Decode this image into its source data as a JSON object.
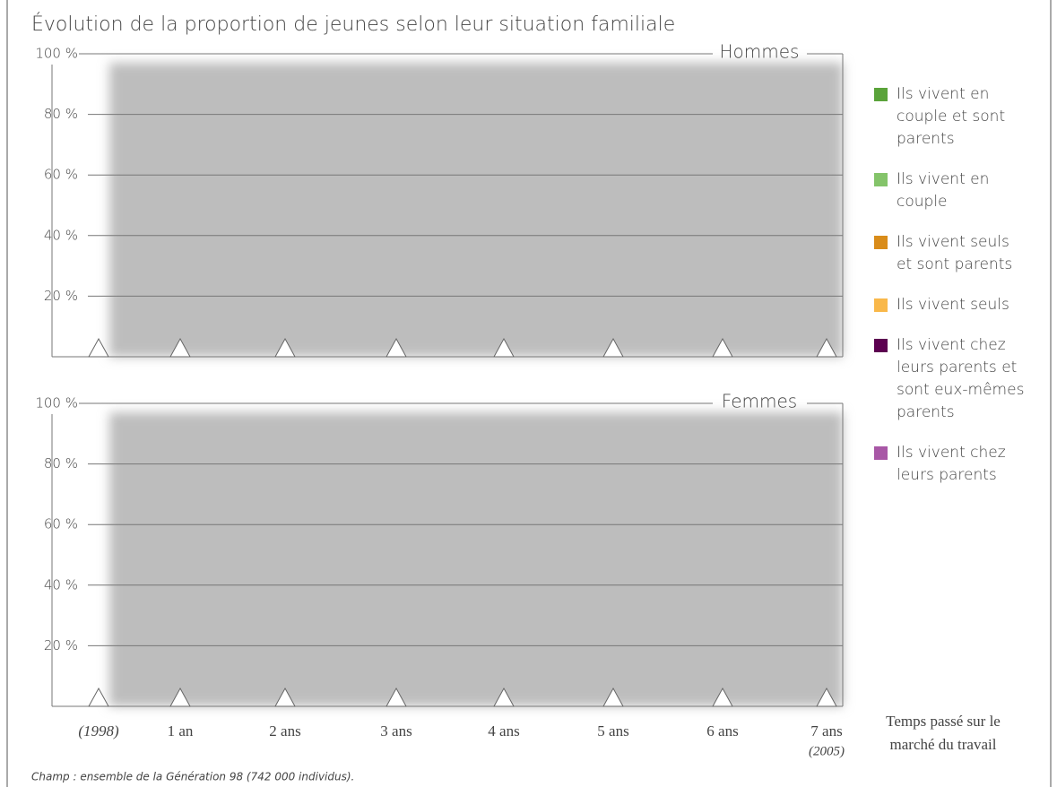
{
  "title": "Évolution de la proportion de jeunes selon leur situation familiale",
  "chart_data": [
    {
      "type": "area",
      "title": "Hommes",
      "ylim": [
        0,
        100
      ],
      "yticks": [
        {
          "value": 20,
          "label": "20 %"
        },
        {
          "value": 40,
          "label": "40 %"
        },
        {
          "value": 60,
          "label": "60 %"
        },
        {
          "value": 80,
          "label": "80 %"
        },
        {
          "value": 100,
          "label": "100 %"
        }
      ]
    },
    {
      "type": "area",
      "title": "Femmes",
      "ylim": [
        0,
        100
      ],
      "yticks": [
        {
          "value": 20,
          "label": "20 %"
        },
        {
          "value": 40,
          "label": "40 %"
        },
        {
          "value": 60,
          "label": "60 %"
        },
        {
          "value": 80,
          "label": "80 %"
        },
        {
          "value": 100,
          "label": "100 %"
        }
      ],
      "categories": [
        "(1998)",
        "1 an",
        "2 ans",
        "3 ans",
        "4 ans",
        "5 ans",
        "6 ans",
        "7 ans"
      ],
      "end_note": "(2005)",
      "xlabel_lines": [
        "Temps passé sur le",
        "marché du travail"
      ]
    }
  ],
  "legend": [
    {
      "name": "Ils vivent en couple et sont parents",
      "color": "#5aa33a"
    },
    {
      "name": "Ils vivent en couple",
      "color": "#84c46a"
    },
    {
      "name": "Ils vivent seuls et sont parents",
      "color": "#d98c1a"
    },
    {
      "name": "Ils vivent seuls",
      "color": "#f9b84a"
    },
    {
      "name": "Ils vivent chez leurs parents et sont eux-mêmes parents",
      "color": "#5c0050"
    },
    {
      "name": "Ils vivent chez leurs parents",
      "color": "#a857a6"
    }
  ],
  "note": "Champ : ensemble de la Génération 98 (742 000 individus)."
}
